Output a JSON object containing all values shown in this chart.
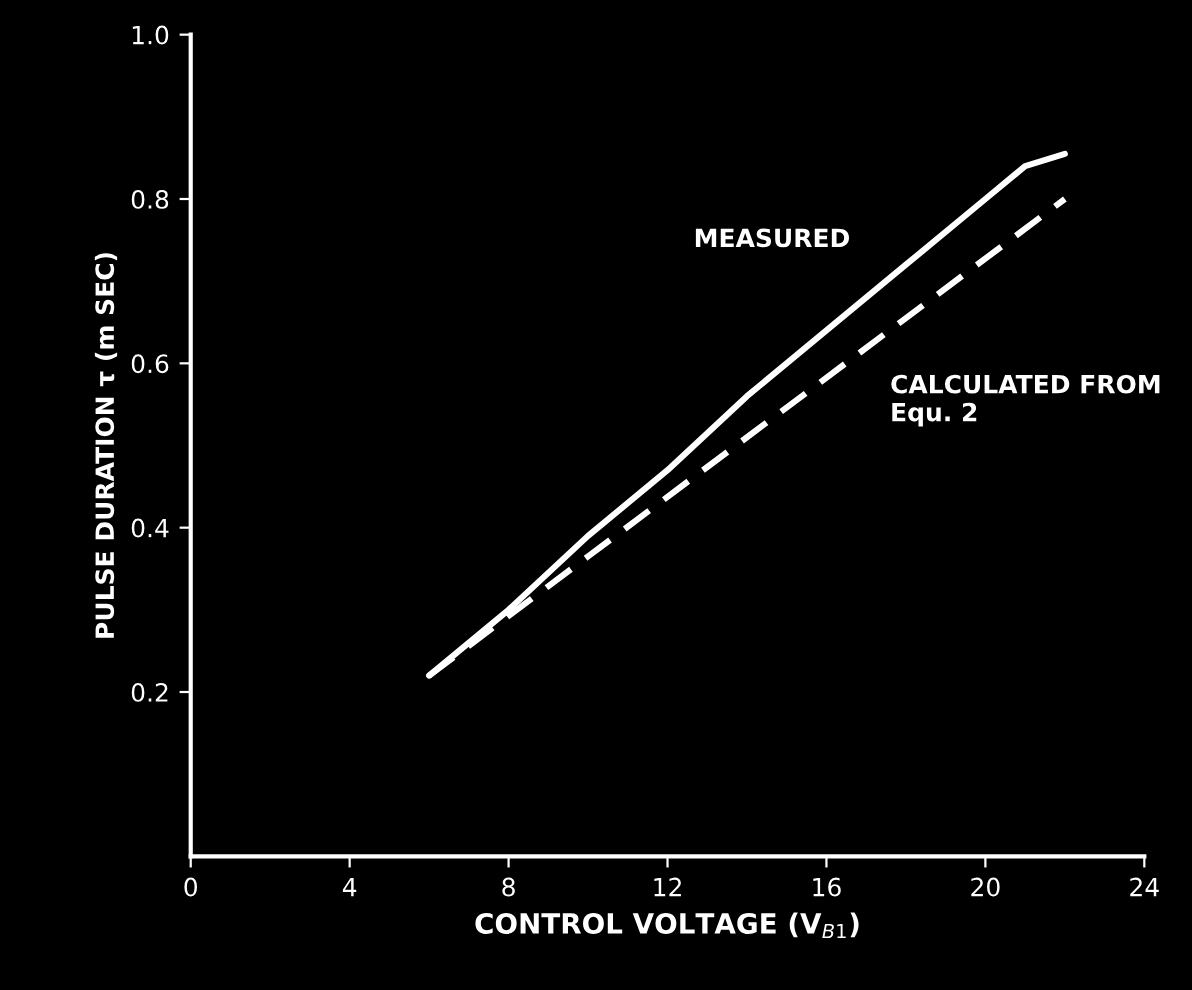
{
  "chart_data": {
    "type": "line",
    "xlabel": "CONTROL VOLTAGE (V$_{B1}$)",
    "ylabel": "PULSE DURATION τ (m SEC)",
    "series": [
      {
        "name": "MEASURED",
        "color": "#ffffff",
        "line_style": "solid",
        "x": [
          6,
          8,
          10,
          12,
          14,
          16,
          18,
          20,
          21,
          22
        ],
        "values": [
          0.22,
          0.3,
          0.39,
          0.47,
          0.56,
          0.64,
          0.72,
          0.8,
          0.84,
          0.855
        ]
      },
      {
        "name": "CALCULATED FROM\nEqu. 2",
        "color": "#ffffff",
        "line_style": "dashed",
        "x": [
          6,
          10,
          14,
          18,
          22
        ],
        "values": [
          0.22,
          0.365,
          0.51,
          0.655,
          0.8
        ]
      }
    ],
    "xlim": [
      0,
      24
    ],
    "xticks": [
      0,
      4,
      8,
      12,
      16,
      20,
      24
    ],
    "ylim": [
      0,
      1.0
    ],
    "yticks": [
      0.2,
      0.4,
      0.6,
      0.8,
      {
        "value": 1.0,
        "label": "1.0"
      }
    ],
    "legend": false
  }
}
